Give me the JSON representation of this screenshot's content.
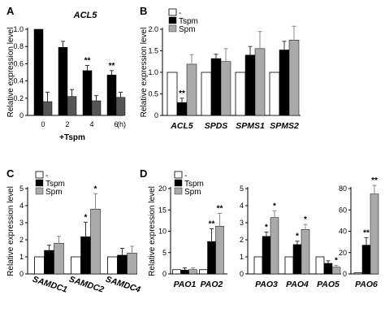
{
  "chart_data": [
    {
      "id": "A",
      "panel_label": "A",
      "type": "bar",
      "title": "ACL5",
      "ylabel": "Relative expression level",
      "ylim": [
        0,
        1.0
      ],
      "yticks": [
        "0",
        "0.2",
        "0.4",
        "0.6",
        "0.8",
        "1.0"
      ],
      "categories": [
        "0",
        "2",
        "4",
        "6"
      ],
      "x_unit": "(h)",
      "x_sublabel": "+Tspm",
      "series": [
        {
          "values": [
            1.0,
            0.79,
            0.52,
            0.47
          ],
          "err": [
            0,
            0.07,
            0.06,
            0.05
          ],
          "color": "#000000"
        },
        {
          "values": [
            0.16,
            0.22,
            0.17,
            0.21
          ],
          "err": [
            0.11,
            0.08,
            0.06,
            0.06
          ],
          "color": "#555555"
        }
      ],
      "annotations": [
        {
          "category": 2,
          "series": 0,
          "text": "**"
        },
        {
          "category": 3,
          "series": 0,
          "text": "**"
        }
      ]
    },
    {
      "id": "B",
      "panel_label": "B",
      "type": "bar",
      "ylabel": "Relative expression level",
      "ylim": [
        0,
        2.0
      ],
      "yticks": [
        "0",
        "0.5",
        "1.0",
        "1.5",
        "2.0"
      ],
      "categories": [
        "ACL5",
        "SPDS",
        "SPMS1",
        "SPMS2"
      ],
      "legend": [
        "-",
        "Tspm",
        "Spm"
      ],
      "series": [
        {
          "name": "-",
          "values": [
            1.0,
            1.0,
            1.0,
            1.0
          ],
          "err": [
            0,
            0,
            0,
            0
          ],
          "color": "#ffffff"
        },
        {
          "name": "Tspm",
          "values": [
            0.3,
            1.32,
            1.4,
            1.52
          ],
          "err": [
            0.1,
            0.1,
            0.2,
            0.2
          ],
          "color": "#000000"
        },
        {
          "name": "Spm",
          "values": [
            1.19,
            1.25,
            1.55,
            1.75
          ],
          "err": [
            0.22,
            0.3,
            0.4,
            0.32
          ],
          "color": "#aaaaaa"
        }
      ],
      "annotations": [
        {
          "category": 0,
          "series": 1,
          "text": "**"
        }
      ]
    },
    {
      "id": "C",
      "panel_label": "C",
      "type": "bar",
      "ylabel": "Relative expression level",
      "ylim": [
        0,
        5
      ],
      "yticks": [
        "0",
        "1",
        "2",
        "3",
        "4",
        "5"
      ],
      "categories": [
        "SAMDC1",
        "SAMDC2",
        "SAMDC4"
      ],
      "legend": [
        "-",
        "Tspm",
        "Spm"
      ],
      "series": [
        {
          "name": "-",
          "values": [
            1.0,
            1.0,
            1.0
          ],
          "err": [
            0,
            0,
            0
          ],
          "color": "#ffffff"
        },
        {
          "name": "Tspm",
          "values": [
            1.38,
            2.18,
            1.1
          ],
          "err": [
            0.3,
            0.85,
            0.4
          ],
          "color": "#000000"
        },
        {
          "name": "Spm",
          "values": [
            1.8,
            3.8,
            1.22
          ],
          "err": [
            0.4,
            0.9,
            0.4
          ],
          "color": "#aaaaaa"
        }
      ],
      "annotations": [
        {
          "category": 1,
          "series": 1,
          "text": "*"
        },
        {
          "category": 1,
          "series": 2,
          "text": "*"
        }
      ]
    },
    {
      "id": "D1",
      "panel_label": "D",
      "type": "bar",
      "ylabel": "Relative expression level",
      "ylim": [
        0,
        20
      ],
      "yticks": [
        "0",
        "5",
        "10",
        "15",
        "20"
      ],
      "categories": [
        "PAO1",
        "PAO2"
      ],
      "legend": [
        "-",
        "Tspm",
        "Spm"
      ],
      "series": [
        {
          "name": "-",
          "values": [
            1.0,
            1.0
          ],
          "err": [
            0,
            0
          ],
          "color": "#ffffff"
        },
        {
          "name": "Tspm",
          "values": [
            0.9,
            7.6
          ],
          "err": [
            0.5,
            3.0
          ],
          "color": "#000000"
        },
        {
          "name": "Spm",
          "values": [
            1.0,
            11.2
          ],
          "err": [
            0.4,
            3.0
          ],
          "color": "#aaaaaa"
        }
      ],
      "annotations": [
        {
          "category": 1,
          "series": 1,
          "text": "**"
        },
        {
          "category": 1,
          "series": 2,
          "text": "**"
        }
      ]
    },
    {
      "id": "D2",
      "type": "bar",
      "ylim": [
        0,
        5
      ],
      "yticks": [
        "0",
        "1",
        "2",
        "3",
        "4",
        "5"
      ],
      "categories": [
        "PAO3",
        "PAO4",
        "PAO5"
      ],
      "series": [
        {
          "name": "-",
          "values": [
            1.0,
            1.0,
            1.0
          ],
          "err": [
            0,
            0,
            0
          ],
          "color": "#ffffff"
        },
        {
          "name": "Tspm",
          "values": [
            2.2,
            1.72,
            0.62
          ],
          "err": [
            0.25,
            0.2,
            0.15
          ],
          "color": "#000000"
        },
        {
          "name": "Spm",
          "values": [
            3.3,
            2.6,
            0.4
          ],
          "err": [
            0.4,
            0.3,
            0.1
          ],
          "color": "#aaaaaa"
        }
      ],
      "annotations": [
        {
          "category": 0,
          "series": 1,
          "text": "*"
        },
        {
          "category": 0,
          "series": 2,
          "text": "*"
        },
        {
          "category": 1,
          "series": 1,
          "text": "*"
        },
        {
          "category": 1,
          "series": 2,
          "text": "*"
        },
        {
          "category": 2,
          "series": 2,
          "text": "*"
        }
      ]
    },
    {
      "id": "D3",
      "type": "bar",
      "ylim": [
        0,
        80
      ],
      "yticks": [
        "0",
        "20",
        "40",
        "60",
        "80"
      ],
      "categories": [
        "PAO6"
      ],
      "series": [
        {
          "name": "-",
          "values": [
            1.0
          ],
          "err": [
            0
          ],
          "color": "#ffffff"
        },
        {
          "name": "Tspm",
          "values": [
            27
          ],
          "err": [
            7
          ],
          "color": "#000000"
        },
        {
          "name": "Spm",
          "values": [
            75
          ],
          "err": [
            8
          ],
          "color": "#aaaaaa"
        }
      ],
      "annotations": [
        {
          "category": 0,
          "series": 1,
          "text": "**"
        },
        {
          "category": 0,
          "series": 2,
          "text": "**"
        }
      ]
    }
  ]
}
